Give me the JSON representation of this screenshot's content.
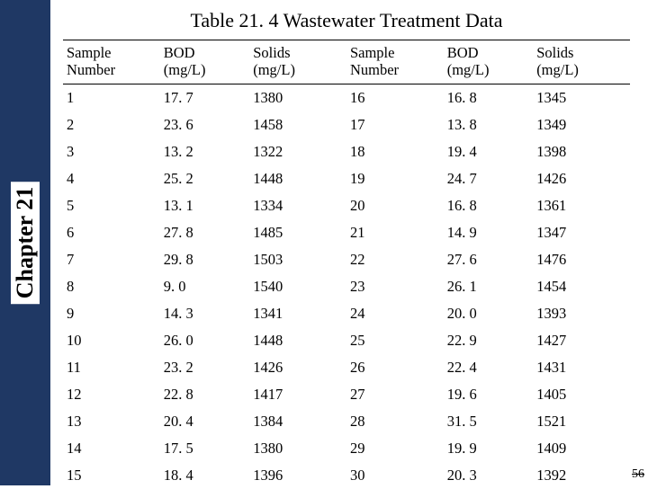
{
  "sidebar": {
    "chapter_label": "Chapter 21"
  },
  "title": "Table 21. 4 Wastewater Treatment Data",
  "page_number": "56",
  "table": {
    "columns": [
      {
        "l1": "Sample",
        "l2": "Number"
      },
      {
        "l1": "BOD",
        "l2": "(mg/L)"
      },
      {
        "l1": "Solids",
        "l2": "(mg/L)"
      },
      {
        "l1": "Sample",
        "l2": "Number"
      },
      {
        "l1": "BOD",
        "l2": "(mg/L)"
      },
      {
        "l1": "Solids",
        "l2": "(mg/L)"
      }
    ],
    "rows": [
      [
        "1",
        "17. 7",
        "1380",
        "16",
        "16. 8",
        "1345"
      ],
      [
        "2",
        "23. 6",
        "1458",
        "17",
        "13. 8",
        "1349"
      ],
      [
        "3",
        "13. 2",
        "1322",
        "18",
        "19. 4",
        "1398"
      ],
      [
        "4",
        "25. 2",
        "1448",
        "19",
        "24. 7",
        "1426"
      ],
      [
        "5",
        "13. 1",
        "1334",
        "20",
        "16. 8",
        "1361"
      ],
      [
        "6",
        "27. 8",
        "1485",
        "21",
        "14. 9",
        "1347"
      ],
      [
        "7",
        "29. 8",
        "1503",
        "22",
        "27. 6",
        "1476"
      ],
      [
        "8",
        "9. 0",
        "1540",
        "23",
        "26. 1",
        "1454"
      ],
      [
        "9",
        "14. 3",
        "1341",
        "24",
        "20. 0",
        "1393"
      ],
      [
        "10",
        "26. 0",
        "1448",
        "25",
        "22. 9",
        "1427"
      ],
      [
        "11",
        "23. 2",
        "1426",
        "26",
        "22. 4",
        "1431"
      ],
      [
        "12",
        "22. 8",
        "1417",
        "27",
        "19. 6",
        "1405"
      ],
      [
        "13",
        "20. 4",
        "1384",
        "28",
        "31. 5",
        "1521"
      ],
      [
        "14",
        "17. 5",
        "1380",
        "29",
        "19. 9",
        "1409"
      ],
      [
        "15",
        "18. 4",
        "1396",
        "30",
        "20. 3",
        "1392"
      ]
    ]
  },
  "colors": {
    "sidebar_bg": "#1f3864",
    "text": "#000000",
    "background": "#ffffff"
  }
}
